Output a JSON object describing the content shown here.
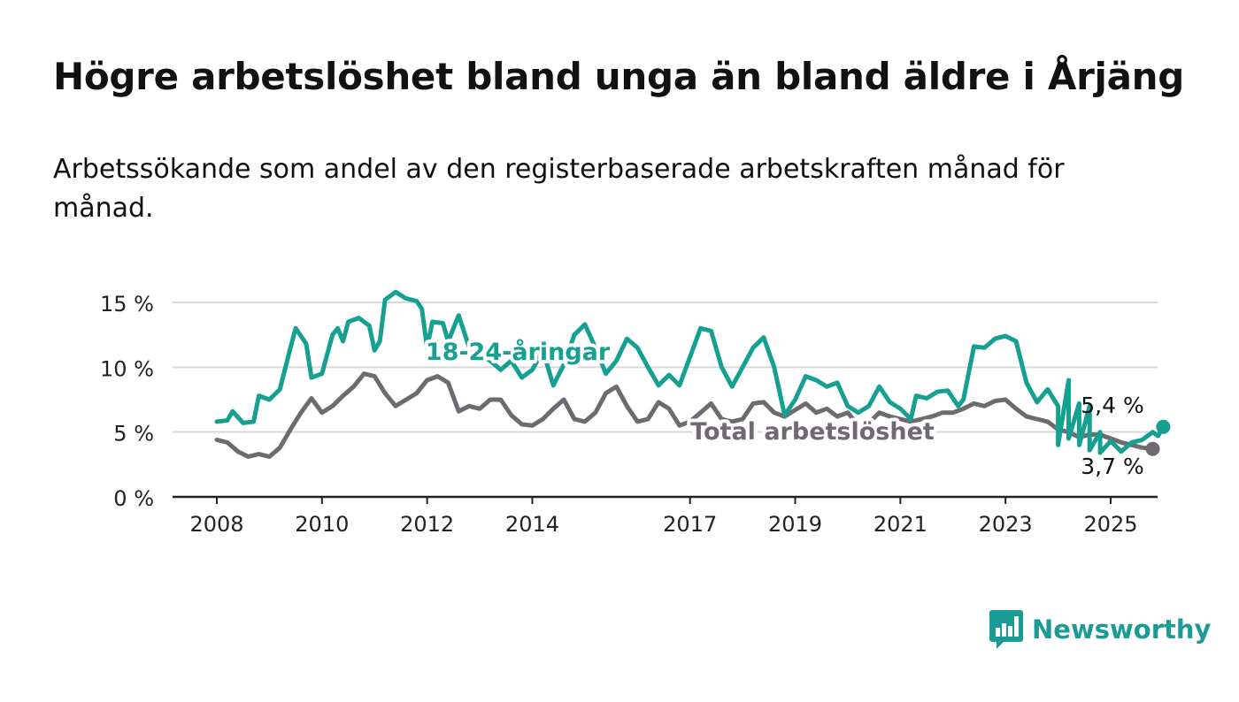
{
  "header": {
    "title": "Högre arbetslöshet bland unga än bland äldre i Årjäng",
    "subtitle": "Arbetssökande som andel av den registerbaserade arbetskraften månad för månad."
  },
  "brand": {
    "name": "Newsworthy",
    "icon": "newsworthy-logo-icon",
    "color": "#1a9b95"
  },
  "chart_data": {
    "type": "line",
    "ylim": [
      0,
      16
    ],
    "yticks": [
      0,
      5,
      10,
      15
    ],
    "ytick_labels": [
      "0 %",
      "5 %",
      "10 %",
      "15 %"
    ],
    "xlim": [
      2007.6,
      2025.9
    ],
    "xticks": [
      2008,
      2010,
      2012,
      2014,
      2017,
      2019,
      2021,
      2023,
      2025
    ],
    "xtick_labels": [
      "2008",
      "2010",
      "2012",
      "2014",
      "2017",
      "2019",
      "2021",
      "2023",
      "2025"
    ],
    "grid": true,
    "series": [
      {
        "name": "18-24-åringar",
        "color": "#15a092",
        "end_label": "5,4 %",
        "points": [
          [
            2008.0,
            5.8
          ],
          [
            2008.2,
            5.9
          ],
          [
            2008.3,
            6.6
          ],
          [
            2008.5,
            5.7
          ],
          [
            2008.7,
            5.8
          ],
          [
            2008.8,
            7.8
          ],
          [
            2009.0,
            7.5
          ],
          [
            2009.2,
            8.3
          ],
          [
            2009.4,
            11.5
          ],
          [
            2009.5,
            13.0
          ],
          [
            2009.7,
            11.8
          ],
          [
            2009.8,
            9.2
          ],
          [
            2010.0,
            9.5
          ],
          [
            2010.2,
            12.5
          ],
          [
            2010.3,
            13.0
          ],
          [
            2010.4,
            12.0
          ],
          [
            2010.5,
            13.5
          ],
          [
            2010.7,
            13.8
          ],
          [
            2010.9,
            13.2
          ],
          [
            2011.0,
            11.3
          ],
          [
            2011.1,
            12.0
          ],
          [
            2011.2,
            15.2
          ],
          [
            2011.4,
            15.8
          ],
          [
            2011.6,
            15.3
          ],
          [
            2011.8,
            15.1
          ],
          [
            2011.9,
            14.5
          ],
          [
            2012.0,
            11.5
          ],
          [
            2012.1,
            13.5
          ],
          [
            2012.3,
            13.4
          ],
          [
            2012.4,
            12.0
          ],
          [
            2012.6,
            14.0
          ],
          [
            2012.8,
            11.5
          ],
          [
            2013.0,
            11.0
          ],
          [
            2013.2,
            10.5
          ],
          [
            2013.4,
            9.8
          ],
          [
            2013.6,
            10.5
          ],
          [
            2013.8,
            9.2
          ],
          [
            2014.0,
            9.8
          ],
          [
            2014.2,
            11.3
          ],
          [
            2014.4,
            8.6
          ],
          [
            2014.6,
            10.2
          ],
          [
            2014.8,
            12.5
          ],
          [
            2015.0,
            13.3
          ],
          [
            2015.2,
            11.5
          ],
          [
            2015.4,
            9.5
          ],
          [
            2015.6,
            10.5
          ],
          [
            2015.8,
            12.2
          ],
          [
            2016.0,
            11.5
          ],
          [
            2016.2,
            10.0
          ],
          [
            2016.4,
            8.6
          ],
          [
            2016.6,
            9.4
          ],
          [
            2016.8,
            8.6
          ],
          [
            2017.0,
            10.8
          ],
          [
            2017.2,
            13.0
          ],
          [
            2017.4,
            12.8
          ],
          [
            2017.6,
            10.0
          ],
          [
            2017.8,
            8.5
          ],
          [
            2018.0,
            10.0
          ],
          [
            2018.2,
            11.5
          ],
          [
            2018.4,
            12.3
          ],
          [
            2018.6,
            10.0
          ],
          [
            2018.8,
            6.3
          ],
          [
            2019.0,
            7.5
          ],
          [
            2019.2,
            9.3
          ],
          [
            2019.4,
            9.0
          ],
          [
            2019.6,
            8.5
          ],
          [
            2019.8,
            8.8
          ],
          [
            2020.0,
            7.0
          ],
          [
            2020.2,
            6.5
          ],
          [
            2020.4,
            7.0
          ],
          [
            2020.6,
            8.5
          ],
          [
            2020.8,
            7.3
          ],
          [
            2021.0,
            6.8
          ],
          [
            2021.2,
            6.0
          ],
          [
            2021.3,
            7.8
          ],
          [
            2021.5,
            7.6
          ],
          [
            2021.7,
            8.1
          ],
          [
            2021.9,
            8.2
          ],
          [
            2022.1,
            7.0
          ],
          [
            2022.2,
            7.5
          ],
          [
            2022.4,
            11.6
          ],
          [
            2022.6,
            11.5
          ],
          [
            2022.8,
            12.2
          ],
          [
            2023.0,
            12.4
          ],
          [
            2023.2,
            12.0
          ],
          [
            2023.4,
            8.8
          ],
          [
            2023.6,
            7.3
          ],
          [
            2023.8,
            8.3
          ],
          [
            2024.0,
            7.0
          ],
          [
            2024.2,
            9.0
          ],
          [
            2024.4,
            7.2
          ],
          [
            2024.6,
            7.0
          ],
          [
            2024.8,
            5.0
          ],
          [
            2024.0,
            4.0
          ],
          [
            2024.2,
            4.5
          ],
          [
            2024.4,
            4.0
          ],
          [
            2024.6,
            3.6
          ],
          [
            2024.8,
            3.4
          ],
          [
            2025.0,
            4.3
          ],
          [
            2025.2,
            3.5
          ],
          [
            2025.4,
            4.2
          ],
          [
            2025.6,
            4.4
          ],
          [
            2025.8,
            5.0
          ],
          [
            2025.9,
            4.7
          ],
          [
            2026.0,
            5.4
          ]
        ]
      },
      {
        "name": "Total arbetslöshet",
        "color": "#6e6a70",
        "end_label": "3,7 %",
        "points": [
          [
            2008.0,
            4.4
          ],
          [
            2008.2,
            4.2
          ],
          [
            2008.4,
            3.5
          ],
          [
            2008.6,
            3.1
          ],
          [
            2008.8,
            3.3
          ],
          [
            2009.0,
            3.1
          ],
          [
            2009.2,
            3.8
          ],
          [
            2009.4,
            5.2
          ],
          [
            2009.6,
            6.5
          ],
          [
            2009.8,
            7.6
          ],
          [
            2010.0,
            6.5
          ],
          [
            2010.2,
            7.0
          ],
          [
            2010.4,
            7.8
          ],
          [
            2010.6,
            8.5
          ],
          [
            2010.8,
            9.5
          ],
          [
            2011.0,
            9.3
          ],
          [
            2011.2,
            8.0
          ],
          [
            2011.4,
            7.0
          ],
          [
            2011.6,
            7.5
          ],
          [
            2011.8,
            8.0
          ],
          [
            2012.0,
            9.0
          ],
          [
            2012.2,
            9.3
          ],
          [
            2012.4,
            8.8
          ],
          [
            2012.6,
            6.6
          ],
          [
            2012.8,
            7.0
          ],
          [
            2013.0,
            6.8
          ],
          [
            2013.2,
            7.5
          ],
          [
            2013.4,
            7.5
          ],
          [
            2013.6,
            6.3
          ],
          [
            2013.8,
            5.6
          ],
          [
            2014.0,
            5.5
          ],
          [
            2014.2,
            6.0
          ],
          [
            2014.4,
            6.8
          ],
          [
            2014.6,
            7.5
          ],
          [
            2014.8,
            6.0
          ],
          [
            2015.0,
            5.8
          ],
          [
            2015.2,
            6.5
          ],
          [
            2015.4,
            8.0
          ],
          [
            2015.6,
            8.5
          ],
          [
            2015.8,
            7.0
          ],
          [
            2016.0,
            5.8
          ],
          [
            2016.2,
            6.0
          ],
          [
            2016.4,
            7.3
          ],
          [
            2016.6,
            6.8
          ],
          [
            2016.8,
            5.5
          ],
          [
            2017.0,
            5.8
          ],
          [
            2017.2,
            6.5
          ],
          [
            2017.4,
            7.2
          ],
          [
            2017.6,
            6.0
          ],
          [
            2017.8,
            5.8
          ],
          [
            2018.0,
            6.0
          ],
          [
            2018.2,
            7.2
          ],
          [
            2018.4,
            7.3
          ],
          [
            2018.6,
            6.5
          ],
          [
            2018.8,
            6.2
          ],
          [
            2019.0,
            6.7
          ],
          [
            2019.2,
            7.2
          ],
          [
            2019.4,
            6.5
          ],
          [
            2019.6,
            6.8
          ],
          [
            2019.8,
            6.2
          ],
          [
            2020.0,
            6.5
          ],
          [
            2020.2,
            5.5
          ],
          [
            2020.4,
            5.7
          ],
          [
            2020.6,
            6.5
          ],
          [
            2020.8,
            6.2
          ],
          [
            2021.0,
            6.0
          ],
          [
            2021.2,
            5.8
          ],
          [
            2021.4,
            6.0
          ],
          [
            2021.6,
            6.2
          ],
          [
            2021.8,
            6.5
          ],
          [
            2022.0,
            6.5
          ],
          [
            2022.2,
            6.8
          ],
          [
            2022.4,
            7.2
          ],
          [
            2022.6,
            7.0
          ],
          [
            2022.8,
            7.4
          ],
          [
            2023.0,
            7.5
          ],
          [
            2023.2,
            6.8
          ],
          [
            2023.4,
            6.2
          ],
          [
            2023.6,
            6.0
          ],
          [
            2023.8,
            5.8
          ],
          [
            2024.0,
            5.2
          ],
          [
            2024.2,
            5.0
          ],
          [
            2024.4,
            4.6
          ],
          [
            2024.6,
            4.8
          ],
          [
            2024.8,
            4.8
          ],
          [
            2025.0,
            4.5
          ],
          [
            2025.2,
            4.2
          ],
          [
            2025.4,
            4.0
          ],
          [
            2025.6,
            3.8
          ],
          [
            2025.8,
            3.7
          ]
        ]
      }
    ]
  }
}
